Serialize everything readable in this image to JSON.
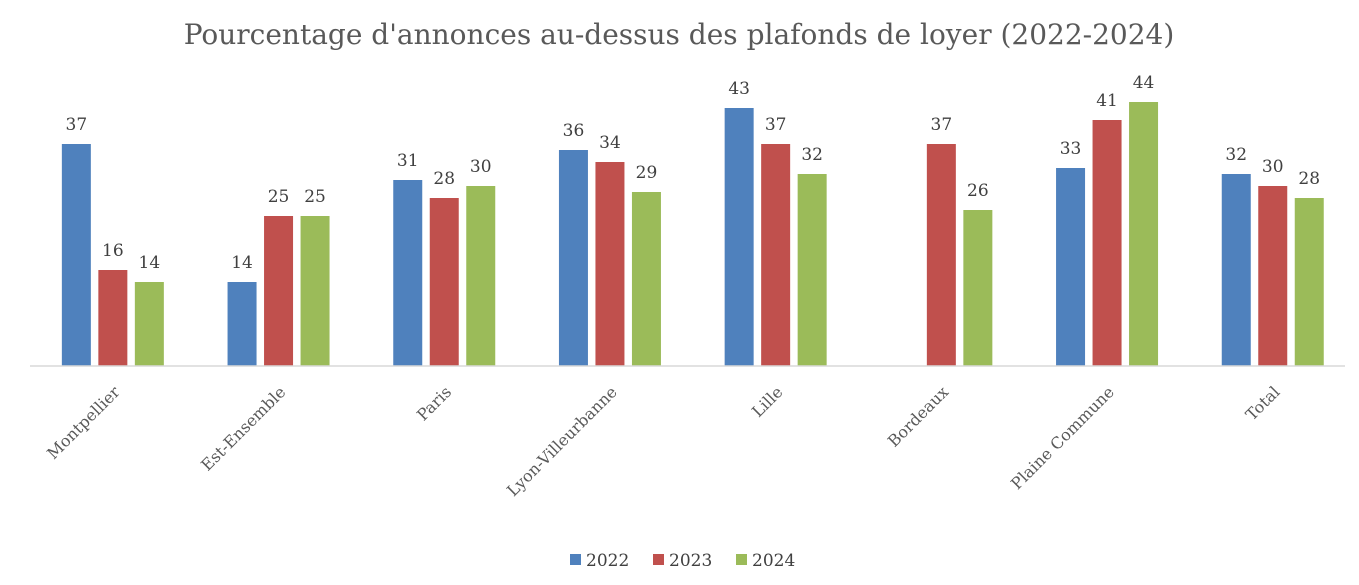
{
  "chart_data": {
    "type": "bar",
    "title": "Pourcentage d'annonces au-dessus des plafonds de loyer (2022-2024)",
    "xlabel": "",
    "ylabel": "",
    "ylim": [
      0,
      45
    ],
    "grid": false,
    "legend_position": "bottom",
    "categories": [
      "Montpellier",
      "Est-Ensemble",
      "Paris",
      "Lyon-Villeurbanne",
      "Lille",
      "Bordeaux",
      "Plaine Commune",
      "Total"
    ],
    "series": [
      {
        "name": "2022",
        "color": "#4F81BD",
        "values": [
          37,
          14,
          31,
          36,
          43,
          null,
          33,
          32
        ]
      },
      {
        "name": "2023",
        "color": "#C0504D",
        "values": [
          16,
          25,
          28,
          34,
          37,
          37,
          41,
          30
        ]
      },
      {
        "name": "2024",
        "color": "#9BBB59",
        "values": [
          14,
          25,
          30,
          29,
          32,
          26,
          44,
          28
        ]
      }
    ]
  }
}
